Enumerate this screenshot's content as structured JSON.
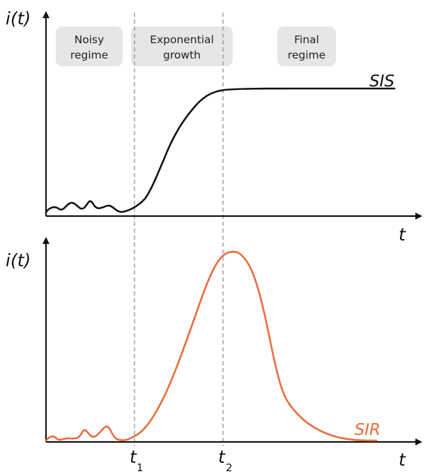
{
  "top_panel": {
    "y_label": "i(t)",
    "x_label": "t",
    "curve_label": "SIS",
    "curve_color": "#111111"
  },
  "bottom_panel": {
    "y_label": "i(t)",
    "x_label": "t",
    "curve_label": "SIR",
    "curve_color": "#ec6b3c"
  },
  "regimes": [
    {
      "line1": "Noisy",
      "line2": "regime"
    },
    {
      "line1": "Exponential",
      "line2": "growth"
    },
    {
      "line1": "Final",
      "line2": "regime"
    }
  ],
  "markers": {
    "t1": {
      "base": "t",
      "sub": "1"
    },
    "t2": {
      "base": "t",
      "sub": "2"
    }
  },
  "colors": {
    "axis": "#111111",
    "divider": "#888888",
    "regime_box": "#e6e6e6"
  }
}
